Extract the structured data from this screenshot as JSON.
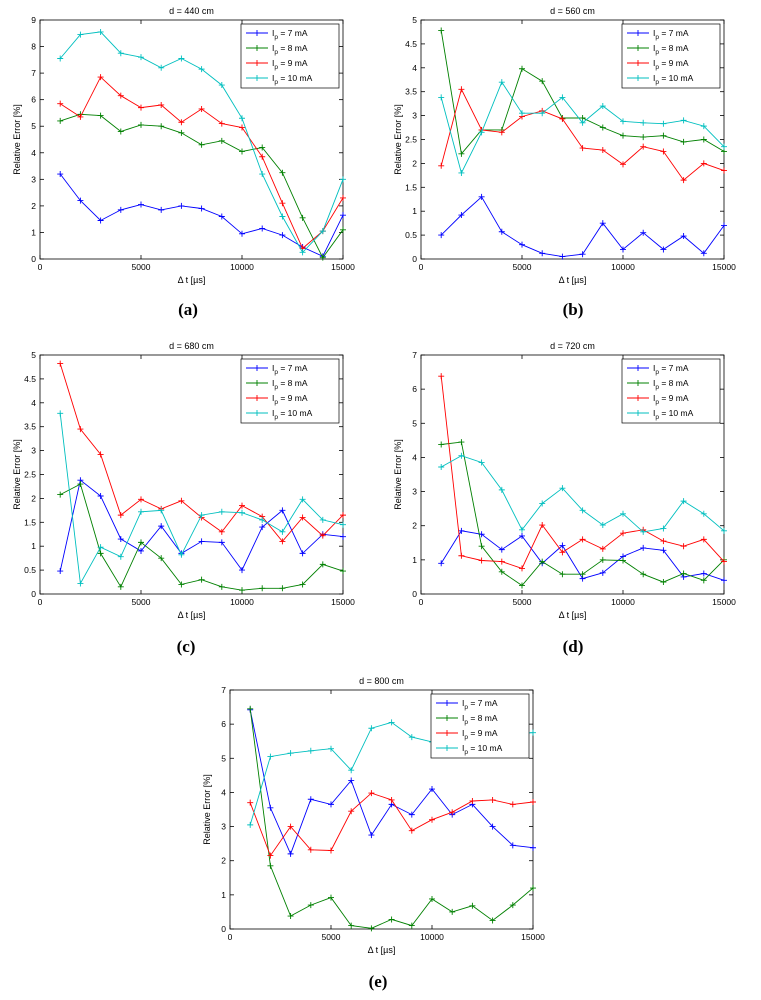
{
  "chart_data": [
    {
      "type": "line",
      "title": "d = 440 cm",
      "xlabel": "Δ t [µs]",
      "ylabel": "Relative Error [%]",
      "xlim": [
        0,
        15000
      ],
      "ylim": [
        0,
        9
      ],
      "xticks": [
        0,
        5000,
        10000,
        15000
      ],
      "yticks": [
        0,
        1,
        2,
        3,
        4,
        5,
        6,
        7,
        8,
        9
      ],
      "legend_position": "top-right",
      "caption": "(a)",
      "x": [
        1000,
        2000,
        3000,
        4000,
        5000,
        6000,
        7000,
        8000,
        9000,
        10000,
        11000,
        12000,
        13000,
        14000,
        15000
      ],
      "series": [
        {
          "name": "I_p = 7 mA",
          "color": "#0000ff",
          "values": [
            3.2,
            2.2,
            1.45,
            1.85,
            2.05,
            1.85,
            2.0,
            1.9,
            1.6,
            0.95,
            1.15,
            0.9,
            0.45,
            0.1,
            1.65
          ]
        },
        {
          "name": "I_p = 8 mA",
          "color": "#008000",
          "values": [
            5.2,
            5.45,
            5.4,
            4.8,
            5.05,
            5.0,
            4.75,
            4.3,
            4.45,
            4.05,
            4.2,
            3.25,
            1.55,
            0.05,
            1.1
          ]
        },
        {
          "name": "I_p = 9 mA",
          "color": "#ff0000",
          "values": [
            5.85,
            5.35,
            6.85,
            6.15,
            5.7,
            5.8,
            5.15,
            5.65,
            5.1,
            4.95,
            3.85,
            2.1,
            0.4,
            1.05,
            2.3
          ]
        },
        {
          "name": "I_p = 10 mA",
          "color": "#00bfbf",
          "values": [
            7.55,
            8.45,
            8.55,
            7.75,
            7.6,
            7.2,
            7.55,
            7.15,
            6.55,
            5.3,
            3.2,
            1.6,
            0.25,
            1.05,
            3.0
          ]
        }
      ]
    },
    {
      "type": "line",
      "title": "d = 560 cm",
      "xlabel": "Δ t [µs]",
      "ylabel": "Relative Error [%]",
      "xlim": [
        0,
        15000
      ],
      "ylim": [
        0,
        5
      ],
      "xticks": [
        0,
        5000,
        10000,
        15000
      ],
      "yticks": [
        0,
        0.5,
        1,
        1.5,
        2,
        2.5,
        3,
        3.5,
        4,
        4.5,
        5
      ],
      "legend_position": "top-right",
      "caption": "(b)",
      "x": [
        1000,
        2000,
        3000,
        4000,
        5000,
        6000,
        7000,
        8000,
        9000,
        10000,
        11000,
        12000,
        13000,
        14000,
        15000
      ],
      "series": [
        {
          "name": "I_p = 7 mA",
          "color": "#0000ff",
          "values": [
            0.5,
            0.92,
            1.3,
            0.57,
            0.3,
            0.12,
            0.05,
            0.1,
            0.75,
            0.2,
            0.55,
            0.2,
            0.48,
            0.12,
            0.7
          ]
        },
        {
          "name": "I_p = 8 mA",
          "color": "#008000",
          "values": [
            4.78,
            2.2,
            2.7,
            2.7,
            3.98,
            3.72,
            2.95,
            2.95,
            2.75,
            2.58,
            2.55,
            2.58,
            2.45,
            2.5,
            2.25
          ]
        },
        {
          "name": "I_p = 9 mA",
          "color": "#ff0000",
          "values": [
            1.95,
            3.55,
            2.7,
            2.65,
            2.98,
            3.1,
            2.93,
            2.32,
            2.28,
            1.98,
            2.35,
            2.25,
            1.65,
            2.0,
            1.85
          ]
        },
        {
          "name": "I_p = 10 mA",
          "color": "#00bfbf",
          "values": [
            3.38,
            1.8,
            2.65,
            3.7,
            3.05,
            3.05,
            3.38,
            2.85,
            3.2,
            2.88,
            2.85,
            2.83,
            2.9,
            2.78,
            2.35
          ]
        }
      ]
    },
    {
      "type": "line",
      "title": "d = 680 cm",
      "xlabel": "Δ t [µs]",
      "ylabel": "Relative Error [%]",
      "xlim": [
        0,
        15000
      ],
      "ylim": [
        0,
        5
      ],
      "xticks": [
        0,
        5000,
        10000,
        15000
      ],
      "yticks": [
        0,
        0.5,
        1,
        1.5,
        2,
        2.5,
        3,
        3.5,
        4,
        4.5,
        5
      ],
      "legend_position": "top-right",
      "caption": "(c)",
      "x": [
        1000,
        2000,
        3000,
        4000,
        5000,
        6000,
        7000,
        8000,
        9000,
        10000,
        11000,
        12000,
        13000,
        14000,
        15000
      ],
      "series": [
        {
          "name": "I_p = 7 mA",
          "color": "#0000ff",
          "values": [
            0.48,
            2.38,
            2.05,
            1.15,
            0.9,
            1.42,
            0.85,
            1.1,
            1.08,
            0.5,
            1.4,
            1.75,
            0.85,
            1.25,
            1.2
          ]
        },
        {
          "name": "I_p = 8 mA",
          "color": "#008000",
          "values": [
            2.08,
            2.3,
            0.85,
            0.15,
            1.08,
            0.75,
            0.2,
            0.3,
            0.15,
            0.08,
            0.12,
            0.12,
            0.2,
            0.62,
            0.48
          ]
        },
        {
          "name": "I_p = 9 mA",
          "color": "#ff0000",
          "values": [
            4.82,
            3.45,
            2.92,
            1.65,
            1.98,
            1.78,
            1.95,
            1.6,
            1.3,
            1.85,
            1.62,
            1.1,
            1.6,
            1.22,
            1.65
          ]
        },
        {
          "name": "I_p = 10 mA",
          "color": "#00bfbf",
          "values": [
            3.78,
            0.22,
            0.98,
            0.78,
            1.72,
            1.75,
            0.82,
            1.65,
            1.72,
            1.7,
            1.55,
            1.3,
            1.98,
            1.55,
            1.45
          ]
        }
      ]
    },
    {
      "type": "line",
      "title": "d = 720 cm",
      "xlabel": "Δ t [µs]",
      "ylabel": "Relative Error [%]",
      "xlim": [
        0,
        15000
      ],
      "ylim": [
        0,
        7
      ],
      "xticks": [
        0,
        5000,
        10000,
        15000
      ],
      "yticks": [
        0,
        1,
        2,
        3,
        4,
        5,
        6,
        7
      ],
      "legend_position": "top-right",
      "caption": "(d)",
      "x": [
        1000,
        2000,
        3000,
        4000,
        5000,
        6000,
        7000,
        8000,
        9000,
        10000,
        11000,
        12000,
        13000,
        14000,
        15000
      ],
      "series": [
        {
          "name": "I_p = 7 mA",
          "color": "#0000ff",
          "values": [
            0.9,
            1.85,
            1.75,
            1.3,
            1.7,
            0.9,
            1.42,
            0.45,
            0.62,
            1.1,
            1.35,
            1.28,
            0.5,
            0.6,
            0.4
          ]
        },
        {
          "name": "I_p = 8 mA",
          "color": "#008000",
          "values": [
            4.38,
            4.45,
            1.4,
            0.65,
            0.25,
            0.95,
            0.58,
            0.58,
            1.0,
            0.98,
            0.58,
            0.35,
            0.6,
            0.4,
            1.0
          ]
        },
        {
          "name": "I_p = 9 mA",
          "color": "#ff0000",
          "values": [
            6.38,
            1.12,
            0.98,
            0.95,
            0.75,
            2.02,
            1.22,
            1.6,
            1.32,
            1.78,
            1.88,
            1.55,
            1.4,
            1.6,
            0.95
          ]
        },
        {
          "name": "I_p = 10 mA",
          "color": "#00bfbf",
          "values": [
            3.72,
            4.05,
            3.85,
            3.05,
            1.88,
            2.65,
            3.1,
            2.45,
            2.02,
            2.35,
            1.82,
            1.92,
            2.72,
            2.35,
            1.85
          ]
        }
      ]
    },
    {
      "type": "line",
      "title": "d = 800 cm",
      "xlabel": "Δ t [µs]",
      "ylabel": "Relative Error [%]",
      "xlim": [
        0,
        15000
      ],
      "ylim": [
        0,
        7
      ],
      "xticks": [
        0,
        5000,
        10000,
        15000
      ],
      "yticks": [
        0,
        1,
        2,
        3,
        4,
        5,
        6,
        7
      ],
      "legend_position": "top-right",
      "caption": "(e)",
      "x": [
        1000,
        2000,
        3000,
        4000,
        5000,
        6000,
        7000,
        8000,
        9000,
        10000,
        11000,
        12000,
        13000,
        14000,
        15000
      ],
      "series": [
        {
          "name": "I_p = 7 mA",
          "color": "#0000ff",
          "values": [
            6.42,
            3.55,
            2.2,
            3.8,
            3.65,
            4.35,
            2.75,
            3.65,
            3.35,
            4.1,
            3.35,
            3.65,
            3.0,
            2.45,
            2.38
          ]
        },
        {
          "name": "I_p = 8 mA",
          "color": "#008000",
          "values": [
            6.45,
            1.85,
            0.38,
            0.7,
            0.92,
            0.1,
            0.02,
            0.28,
            0.1,
            0.88,
            0.5,
            0.68,
            0.25,
            0.7,
            1.2
          ]
        },
        {
          "name": "I_p = 9 mA",
          "color": "#ff0000",
          "values": [
            3.7,
            2.15,
            3.0,
            2.32,
            2.3,
            3.45,
            3.98,
            3.78,
            2.88,
            3.2,
            3.42,
            3.75,
            3.78,
            3.65,
            3.72
          ]
        },
        {
          "name": "I_p = 10 mA",
          "color": "#00bfbf",
          "values": [
            3.05,
            5.05,
            5.15,
            5.22,
            5.28,
            4.65,
            5.88,
            6.05,
            5.62,
            5.48,
            5.55,
            5.6,
            5.65,
            5.72,
            5.75
          ]
        }
      ]
    }
  ]
}
